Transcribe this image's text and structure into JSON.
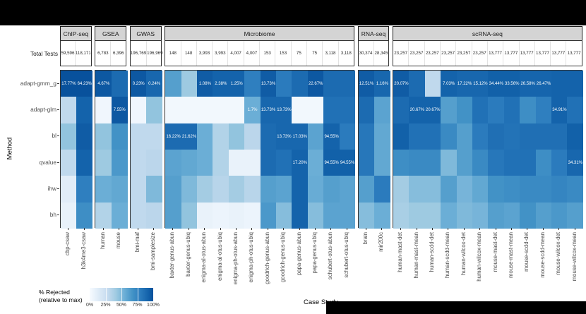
{
  "header": {
    "total_tests_label": "Total Tests"
  },
  "legend": {
    "title_line1": "% Rejected",
    "title_line2": "(relative to max)",
    "ticks": [
      "0%",
      "25%",
      "50%",
      "75%",
      "100%"
    ]
  },
  "chart_data": {
    "type": "heatmap",
    "title": "",
    "xlabel": "Case Study",
    "ylabel": "Method",
    "legend_label": "% Rejected (relative to max)",
    "color_scale": {
      "palette": "Blues",
      "stops": [
        [
          0,
          "#f7fbff"
        ],
        [
          0.14,
          "#deebf7"
        ],
        [
          0.28,
          "#c6dbef"
        ],
        [
          0.42,
          "#9ecae1"
        ],
        [
          0.55,
          "#6baed6"
        ],
        [
          0.68,
          "#4292c6"
        ],
        [
          0.8,
          "#2b7bbd"
        ],
        [
          0.92,
          "#1463ab"
        ],
        [
          1,
          "#08519c"
        ]
      ]
    },
    "methods": [
      "adapt-gmm_g",
      "adapt-glm",
      "bl",
      "qvalue",
      "ihw",
      "bh"
    ],
    "facets": [
      {
        "name": "ChIP-seq",
        "case_studies": [
          "cbp-csaw",
          "h3k4me3-csaw"
        ],
        "total_tests": [
          "59,596",
          "118,171"
        ],
        "rows": [
          {
            "v": [
              100,
              100
            ],
            "t": [
              "17.77%",
              "64.23%"
            ]
          },
          {
            "v": [
              30,
              92
            ]
          },
          {
            "v": [
              45,
              95
            ]
          },
          {
            "v": [
              30,
              92
            ]
          },
          {
            "v": [
              12,
              78
            ]
          },
          {
            "v": [
              8,
              70
            ]
          }
        ]
      },
      {
        "name": "GSEA",
        "case_studies": [
          "human",
          "mouse"
        ],
        "total_tests": [
          "6,783",
          "6,396"
        ],
        "rows": [
          {
            "v": [
              97,
              88
            ],
            "t": [
              "4.67%",
              ""
            ]
          },
          {
            "v": [
              4,
              97
            ],
            "t": [
              "",
              "7.55%"
            ]
          },
          {
            "v": [
              45,
              68
            ]
          },
          {
            "v": [
              42,
              65
            ]
          },
          {
            "v": [
              55,
              58
            ]
          },
          {
            "v": [
              35,
              55
            ]
          }
        ]
      },
      {
        "name": "GWAS",
        "case_studies": [
          "bmi-maf",
          "bmi-samplesize"
        ],
        "total_tests": [
          "196,769",
          "196,969"
        ],
        "rows": [
          {
            "v": [
              97,
              90
            ],
            "t": [
              "0.23%",
              "0.24%"
            ]
          },
          {
            "v": [
              4,
              45
            ]
          },
          {
            "v": [
              30,
              30
            ]
          },
          {
            "v": [
              30,
              32
            ]
          },
          {
            "v": [
              30,
              50
            ]
          },
          {
            "v": [
              30,
              32
            ]
          }
        ]
      },
      {
        "name": "Microbiome",
        "case_studies": [
          "baxter-genus-abun",
          "baxter-genus-ubiq",
          "enigma-al-otus-abun",
          "enigma-al-otus-ubiq",
          "enigma-ph-otus-abun",
          "enigma-ph-otus-ubiq",
          "goodrich-genus-abun",
          "goodrich-genus-ubiq",
          "papa-genus-abun",
          "papa-genus-ubiq",
          "schubert-otus-abun",
          "schubert-otus-ubiq"
        ],
        "total_tests": [
          "148",
          "148",
          "3,993",
          "3,993",
          "4,007",
          "4,007",
          "153",
          "153",
          "75",
          "75",
          "3,118",
          "3,118"
        ],
        "rows": [
          {
            "v": [
              62,
              42,
              95,
              92,
              92,
              78,
              95,
              80,
              88,
              97,
              88,
              88
            ],
            "t": [
              "",
              "",
              "1.08%",
              "2.38%",
              "1.25%",
              "",
              "13.73%",
              "",
              "",
              "22.67%",
              "",
              ""
            ]
          },
          {
            "v": [
              3,
              3,
              3,
              3,
              3,
              55,
              90,
              90,
              3,
              3,
              85,
              85
            ],
            "t": [
              "",
              "",
              "",
              "",
              "",
              "1.7%",
              "13.73%",
              "13.73%",
              "",
              "",
              "",
              ""
            ]
          },
          {
            "v": [
              88,
              88,
              55,
              35,
              45,
              32,
              88,
              90,
              90,
              60,
              92,
              80
            ],
            "t": [
              "16.22%",
              "21.62%",
              "",
              "",
              "",
              "",
              "",
              "13.73%",
              "17.03%",
              "",
              "94.55%",
              ""
            ]
          },
          {
            "v": [
              60,
              58,
              55,
              35,
              8,
              8,
              88,
              85,
              92,
              55,
              93,
              93
            ],
            "t": [
              "",
              "",
              "",
              "",
              "",
              "",
              "",
              "",
              "17.20%",
              "",
              "94.55%",
              "94.55%"
            ]
          },
          {
            "v": [
              62,
              50,
              40,
              33,
              40,
              33,
              62,
              60,
              92,
              56,
              62,
              60
            ]
          },
          {
            "v": [
              62,
              45,
              8,
              6,
              8,
              6,
              65,
              48,
              92,
              48,
              60,
              60
            ]
          }
        ]
      },
      {
        "name": "RNA-seq",
        "case_studies": [
          "brain",
          "mir200c"
        ],
        "total_tests": [
          "30,374",
          "28,345"
        ],
        "rows": [
          {
            "v": [
              95,
              90
            ],
            "t": [
              "12.51%",
              "1.16%"
            ]
          },
          {
            "v": [
              88,
              60
            ]
          },
          {
            "v": [
              82,
              58
            ]
          },
          {
            "v": [
              82,
              58
            ]
          },
          {
            "v": [
              62,
              80
            ]
          },
          {
            "v": [
              48,
              55
            ]
          }
        ]
      },
      {
        "name": "scRNA-seq",
        "case_studies": [
          "human-mast-det",
          "human-mast-mean",
          "human-scdd-det",
          "human-scdd-mean",
          "human-wilcox-det",
          "human-wilcox-mean",
          "mouse-mast-det",
          "mouse-mast-mean",
          "mouse-scdd-det",
          "mouse-scdd-mean",
          "mouse-wilcox-det",
          "mouse-wilcox-mean"
        ],
        "total_tests": [
          "23,257",
          "23,257",
          "23,257",
          "23,257",
          "23,257",
          "23,257",
          "13,777",
          "13,777",
          "13,777",
          "13,777",
          "13,777",
          "13,777"
        ],
        "rows": [
          {
            "v": [
              95,
              88,
              30,
              92,
              90,
              90,
              93,
              93,
              91,
              91,
              92,
              92
            ],
            "t": [
              "20.07%",
              "",
              "",
              "7.03%",
              "17.22%",
              "15.12%",
              "34.44%",
              "33.56%",
              "26.58%",
              "26.47%",
              "",
              ""
            ]
          },
          {
            "v": [
              88,
              92,
              92,
              62,
              68,
              85,
              80,
              85,
              70,
              78,
              92,
              85
            ],
            "t": [
              "",
              "20.67%",
              "20.67%",
              "",
              "",
              "",
              "",
              "",
              "",
              "",
              "34.91%",
              ""
            ]
          },
          {
            "v": [
              93,
              85,
              85,
              72,
              62,
              80,
              86,
              84,
              86,
              86,
              86,
              93
            ]
          },
          {
            "v": [
              70,
              72,
              72,
              50,
              62,
              72,
              82,
              85,
              85,
              70,
              80,
              90
            ],
            "t": [
              "",
              "",
              "",
              "",
              "",
              "",
              "",
              "",
              "",
              "",
              "",
              "34.31%"
            ]
          },
          {
            "v": [
              40,
              48,
              48,
              62,
              52,
              58,
              68,
              70,
              72,
              72,
              75,
              72
            ]
          },
          {
            "v": [
              38,
              42,
              42,
              55,
              50,
              52,
              62,
              60,
              68,
              62,
              65,
              62
            ]
          }
        ]
      }
    ]
  }
}
